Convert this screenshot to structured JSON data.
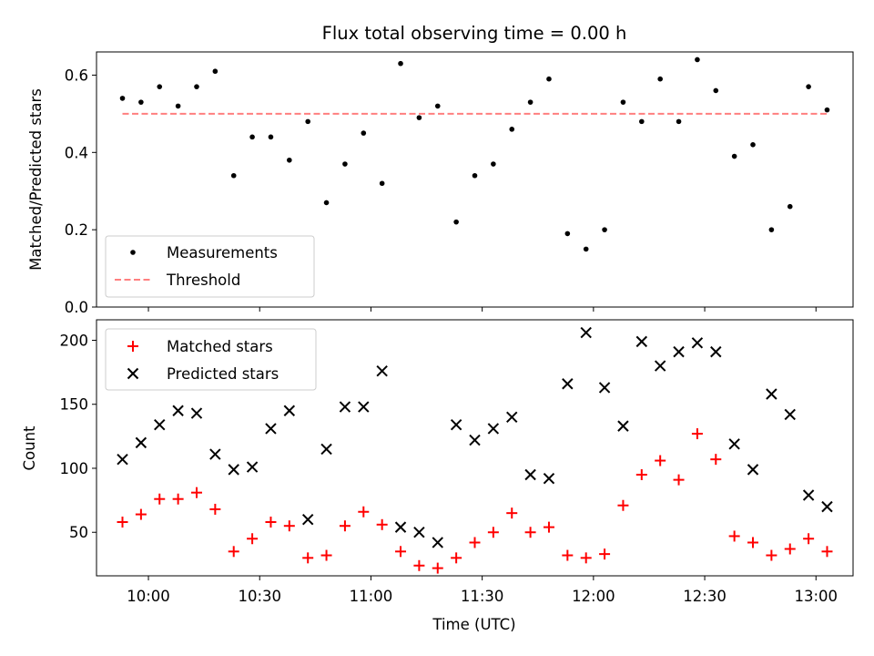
{
  "chart_data": [
    {
      "type": "scatter",
      "title": "Flux total observing time = 0.00 h",
      "ylabel": "Matched/Predicted stars",
      "ylim": [
        0,
        0.66
      ],
      "yticks": [
        0.0,
        0.2,
        0.4,
        0.6
      ],
      "ytick_labels": [
        "0.0",
        "0.2",
        "0.4",
        "0.6"
      ],
      "legend_position": "lower-left",
      "series": [
        {
          "name": "Measurements",
          "marker": "dot",
          "color": "#000000",
          "x": [
            "09:53",
            "09:58",
            "10:03",
            "10:08",
            "10:13",
            "10:18",
            "10:23",
            "10:28",
            "10:33",
            "10:38",
            "10:43",
            "10:48",
            "10:53",
            "10:58",
            "11:03",
            "11:08",
            "11:13",
            "11:18",
            "11:23",
            "11:28",
            "11:33",
            "11:38",
            "11:43",
            "11:48",
            "11:53",
            "11:58",
            "12:03",
            "12:08",
            "12:13",
            "12:18",
            "12:23",
            "12:28",
            "12:33",
            "12:38",
            "12:43",
            "12:48",
            "12:53",
            "12:58",
            "13:03"
          ],
          "y": [
            0.54,
            0.53,
            0.57,
            0.52,
            0.57,
            0.61,
            0.34,
            0.44,
            0.44,
            0.38,
            0.48,
            0.27,
            0.37,
            0.45,
            0.32,
            0.63,
            0.49,
            0.52,
            0.22,
            0.34,
            0.37,
            0.46,
            0.53,
            0.59,
            0.19,
            0.15,
            0.2,
            0.53,
            0.48,
            0.59,
            0.48,
            0.64,
            0.56,
            0.39,
            0.42,
            0.2,
            0.26,
            0.57,
            0.51
          ]
        },
        {
          "name": "Threshold",
          "marker": "dashed-line",
          "color": "#ff7f7f",
          "x": [
            "09:53",
            "13:03"
          ],
          "y": [
            0.5,
            0.5
          ]
        }
      ]
    },
    {
      "type": "scatter",
      "xlabel": "Time (UTC)",
      "ylabel": "Count",
      "ylim": [
        16,
        216
      ],
      "yticks": [
        50,
        100,
        150,
        200
      ],
      "ytick_labels": [
        "50",
        "100",
        "150",
        "200"
      ],
      "xticks": [
        "10:00",
        "10:30",
        "11:00",
        "11:30",
        "12:00",
        "12:30",
        "13:00"
      ],
      "xlim": [
        "09:46",
        "13:10"
      ],
      "legend_position": "upper-left",
      "series": [
        {
          "name": "Matched stars",
          "marker": "plus",
          "color": "#ff0000",
          "x": [
            "09:53",
            "09:58",
            "10:03",
            "10:08",
            "10:13",
            "10:18",
            "10:23",
            "10:28",
            "10:33",
            "10:38",
            "10:43",
            "10:48",
            "10:53",
            "10:58",
            "11:03",
            "11:08",
            "11:13",
            "11:18",
            "11:23",
            "11:28",
            "11:33",
            "11:38",
            "11:43",
            "11:48",
            "11:53",
            "11:58",
            "12:03",
            "12:08",
            "12:13",
            "12:18",
            "12:23",
            "12:28",
            "12:33",
            "12:38",
            "12:43",
            "12:48",
            "12:53",
            "12:58",
            "13:03"
          ],
          "y": [
            58,
            64,
            76,
            76,
            81,
            68,
            35,
            45,
            58,
            55,
            30,
            32,
            55,
            66,
            56,
            35,
            24,
            22,
            30,
            42,
            50,
            65,
            50,
            54,
            32,
            30,
            33,
            71,
            95,
            106,
            91,
            127,
            107,
            47,
            42,
            32,
            37,
            45,
            35
          ]
        },
        {
          "name": "Predicted stars",
          "marker": "x",
          "color": "#000000",
          "x": [
            "09:53",
            "09:58",
            "10:03",
            "10:08",
            "10:13",
            "10:18",
            "10:23",
            "10:28",
            "10:33",
            "10:38",
            "10:43",
            "10:48",
            "10:53",
            "10:58",
            "11:03",
            "11:08",
            "11:13",
            "11:18",
            "11:23",
            "11:28",
            "11:33",
            "11:38",
            "11:43",
            "11:48",
            "11:53",
            "11:58",
            "12:03",
            "12:08",
            "12:13",
            "12:18",
            "12:23",
            "12:28",
            "12:33",
            "12:38",
            "12:43",
            "12:48",
            "12:53",
            "12:58",
            "13:03"
          ],
          "y": [
            107,
            120,
            134,
            145,
            143,
            111,
            99,
            101,
            131,
            145,
            60,
            115,
            148,
            148,
            176,
            54,
            50,
            42,
            134,
            122,
            131,
            140,
            95,
            92,
            166,
            206,
            163,
            133,
            199,
            180,
            191,
            198,
            191,
            119,
            99,
            158,
            142,
            79,
            70
          ]
        }
      ]
    }
  ]
}
